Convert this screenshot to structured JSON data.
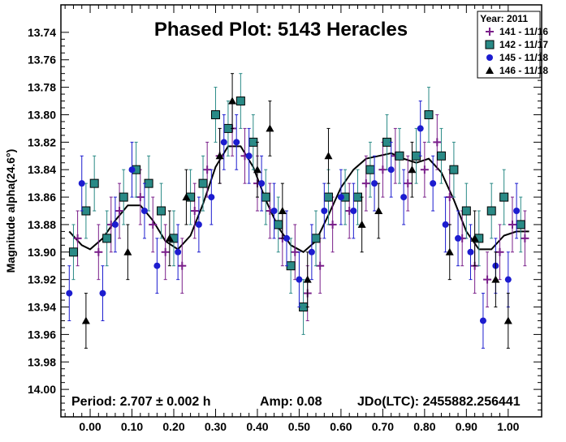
{
  "chart_data": {
    "type": "scatter",
    "title": "Phased Plot: 5143 Heracles",
    "xlabel": "",
    "ylabel": "Magnitude alpha(24.6°)",
    "xlim": [
      -0.07,
      1.08
    ],
    "ylim": [
      14.02,
      13.72
    ],
    "y_inverted": true,
    "x_ticks": [
      "0.00",
      "0.10",
      "0.20",
      "0.30",
      "0.40",
      "0.50",
      "0.60",
      "0.70",
      "0.80",
      "0.90",
      "1.00"
    ],
    "x_tick_values": [
      0,
      0.1,
      0.2,
      0.3,
      0.4,
      0.5,
      0.6,
      0.7,
      0.8,
      0.9,
      1.0
    ],
    "y_ticks": [
      "13.74",
      "13.76",
      "13.78",
      "13.80",
      "13.82",
      "13.84",
      "13.86",
      "13.88",
      "13.90",
      "13.92",
      "13.94",
      "13.96",
      "13.98",
      "14.00"
    ],
    "y_tick_values": [
      13.74,
      13.76,
      13.78,
      13.8,
      13.82,
      13.84,
      13.86,
      13.88,
      13.9,
      13.92,
      13.94,
      13.96,
      13.98,
      14.0
    ],
    "legend": {
      "title": "Year: 2011",
      "position": "top-right"
    },
    "series": [
      {
        "name": "141 - 11/16",
        "marker": "plus",
        "color": "#7a1f8a",
        "points": [
          [
            -0.03,
            13.89
          ],
          [
            0.02,
            13.9
          ],
          [
            0.05,
            13.88
          ],
          [
            0.07,
            13.87
          ],
          [
            0.12,
            13.86
          ],
          [
            0.15,
            13.88
          ],
          [
            0.18,
            13.9
          ],
          [
            0.22,
            13.91
          ],
          [
            0.25,
            13.87
          ],
          [
            0.28,
            13.84
          ],
          [
            0.31,
            13.83
          ],
          [
            0.34,
            13.81
          ],
          [
            0.37,
            13.83
          ],
          [
            0.4,
            13.85
          ],
          [
            0.43,
            13.87
          ],
          [
            0.46,
            13.89
          ],
          [
            0.49,
            13.9
          ],
          [
            0.52,
            13.93
          ],
          [
            0.55,
            13.91
          ],
          [
            0.58,
            13.88
          ],
          [
            0.62,
            13.87
          ],
          [
            0.66,
            13.85
          ],
          [
            0.7,
            13.84
          ],
          [
            0.73,
            13.83
          ],
          [
            0.76,
            13.85
          ],
          [
            0.8,
            13.84
          ],
          [
            0.83,
            13.82
          ],
          [
            0.86,
            13.86
          ],
          [
            0.89,
            13.89
          ],
          [
            0.92,
            13.91
          ],
          [
            0.95,
            13.92
          ],
          [
            0.98,
            13.9
          ],
          [
            1.01,
            13.88
          ],
          [
            1.04,
            13.89
          ]
        ]
      },
      {
        "name": "142 - 11/17",
        "marker": "square",
        "color": "#2a8a86",
        "points": [
          [
            -0.04,
            13.9
          ],
          [
            -0.01,
            13.87
          ],
          [
            0.01,
            13.85
          ],
          [
            0.04,
            13.89
          ],
          [
            0.08,
            13.86
          ],
          [
            0.11,
            13.84
          ],
          [
            0.14,
            13.85
          ],
          [
            0.17,
            13.87
          ],
          [
            0.2,
            13.89
          ],
          [
            0.24,
            13.86
          ],
          [
            0.27,
            13.85
          ],
          [
            0.3,
            13.8
          ],
          [
            0.33,
            13.81
          ],
          [
            0.36,
            13.79
          ],
          [
            0.39,
            13.82
          ],
          [
            0.42,
            13.86
          ],
          [
            0.45,
            13.88
          ],
          [
            0.48,
            13.91
          ],
          [
            0.51,
            13.94
          ],
          [
            0.54,
            13.89
          ],
          [
            0.57,
            13.86
          ],
          [
            0.61,
            13.86
          ],
          [
            0.64,
            13.86
          ],
          [
            0.67,
            13.84
          ],
          [
            0.71,
            13.82
          ],
          [
            0.74,
            13.83
          ],
          [
            0.78,
            13.83
          ],
          [
            0.81,
            13.8
          ],
          [
            0.84,
            13.83
          ],
          [
            0.87,
            13.84
          ],
          [
            0.9,
            13.87
          ],
          [
            0.93,
            13.89
          ],
          [
            0.96,
            13.87
          ],
          [
            0.99,
            13.86
          ],
          [
            1.03,
            13.88
          ]
        ]
      },
      {
        "name": "145 - 11/18",
        "marker": "circle",
        "color": "#1c1ccf",
        "points": [
          [
            -0.05,
            13.93
          ],
          [
            -0.02,
            13.85
          ],
          [
            0.03,
            13.93
          ],
          [
            0.06,
            13.88
          ],
          [
            0.1,
            13.84
          ],
          [
            0.13,
            13.87
          ],
          [
            0.16,
            13.91
          ],
          [
            0.21,
            13.9
          ],
          [
            0.26,
            13.88
          ],
          [
            0.29,
            13.86
          ],
          [
            0.32,
            13.82
          ],
          [
            0.35,
            13.82
          ],
          [
            0.38,
            13.83
          ],
          [
            0.41,
            13.85
          ],
          [
            0.44,
            13.87
          ],
          [
            0.47,
            13.89
          ],
          [
            0.5,
            13.92
          ],
          [
            0.53,
            13.9
          ],
          [
            0.56,
            13.87
          ],
          [
            0.6,
            13.86
          ],
          [
            0.63,
            13.87
          ],
          [
            0.68,
            13.85
          ],
          [
            0.72,
            13.84
          ],
          [
            0.75,
            13.86
          ],
          [
            0.79,
            13.81
          ],
          [
            0.82,
            13.85
          ],
          [
            0.85,
            13.88
          ],
          [
            0.88,
            13.89
          ],
          [
            0.91,
            13.9
          ],
          [
            0.94,
            13.95
          ],
          [
            0.97,
            13.91
          ],
          [
            1.0,
            13.92
          ],
          [
            1.02,
            13.87
          ]
        ]
      },
      {
        "name": "146 - 11/18",
        "marker": "triangle",
        "color": "#000000",
        "points": [
          [
            -0.01,
            13.95
          ],
          [
            0.09,
            13.9
          ],
          [
            0.19,
            13.89
          ],
          [
            0.23,
            13.86
          ],
          [
            0.31,
            13.83
          ],
          [
            0.34,
            13.79
          ],
          [
            0.4,
            13.84
          ],
          [
            0.43,
            13.81
          ],
          [
            0.46,
            13.87
          ],
          [
            0.52,
            13.92
          ],
          [
            0.57,
            13.83
          ],
          [
            0.65,
            13.88
          ],
          [
            0.69,
            13.87
          ],
          [
            0.77,
            13.84
          ],
          [
            0.86,
            13.9
          ],
          [
            0.92,
            13.89
          ],
          [
            0.97,
            13.92
          ],
          [
            1.0,
            13.95
          ]
        ]
      }
    ],
    "fit_curve": {
      "color": "#000000",
      "x": [
        -0.05,
        -0.02,
        0.0,
        0.03,
        0.06,
        0.09,
        0.12,
        0.15,
        0.18,
        0.21,
        0.24,
        0.27,
        0.3,
        0.33,
        0.36,
        0.39,
        0.42,
        0.45,
        0.48,
        0.51,
        0.54,
        0.57,
        0.6,
        0.63,
        0.66,
        0.69,
        0.72,
        0.75,
        0.78,
        0.81,
        0.84,
        0.87,
        0.9,
        0.93,
        0.96,
        0.99,
        1.02,
        1.05
      ],
      "y": [
        13.885,
        13.895,
        13.898,
        13.89,
        13.877,
        13.866,
        13.866,
        13.877,
        13.892,
        13.898,
        13.888,
        13.865,
        13.838,
        13.823,
        13.823,
        13.838,
        13.862,
        13.882,
        13.895,
        13.9,
        13.892,
        13.873,
        13.853,
        13.84,
        13.832,
        13.83,
        13.828,
        13.832,
        13.835,
        13.832,
        13.842,
        13.862,
        13.885,
        13.898,
        13.898,
        13.888,
        13.885,
        13.885
      ]
    }
  },
  "info": {
    "period": "Period: 2.707 ± 0.002 h",
    "amp": "Amp: 0.08",
    "jdo": "JDo(LTC): 2455882.256441"
  }
}
